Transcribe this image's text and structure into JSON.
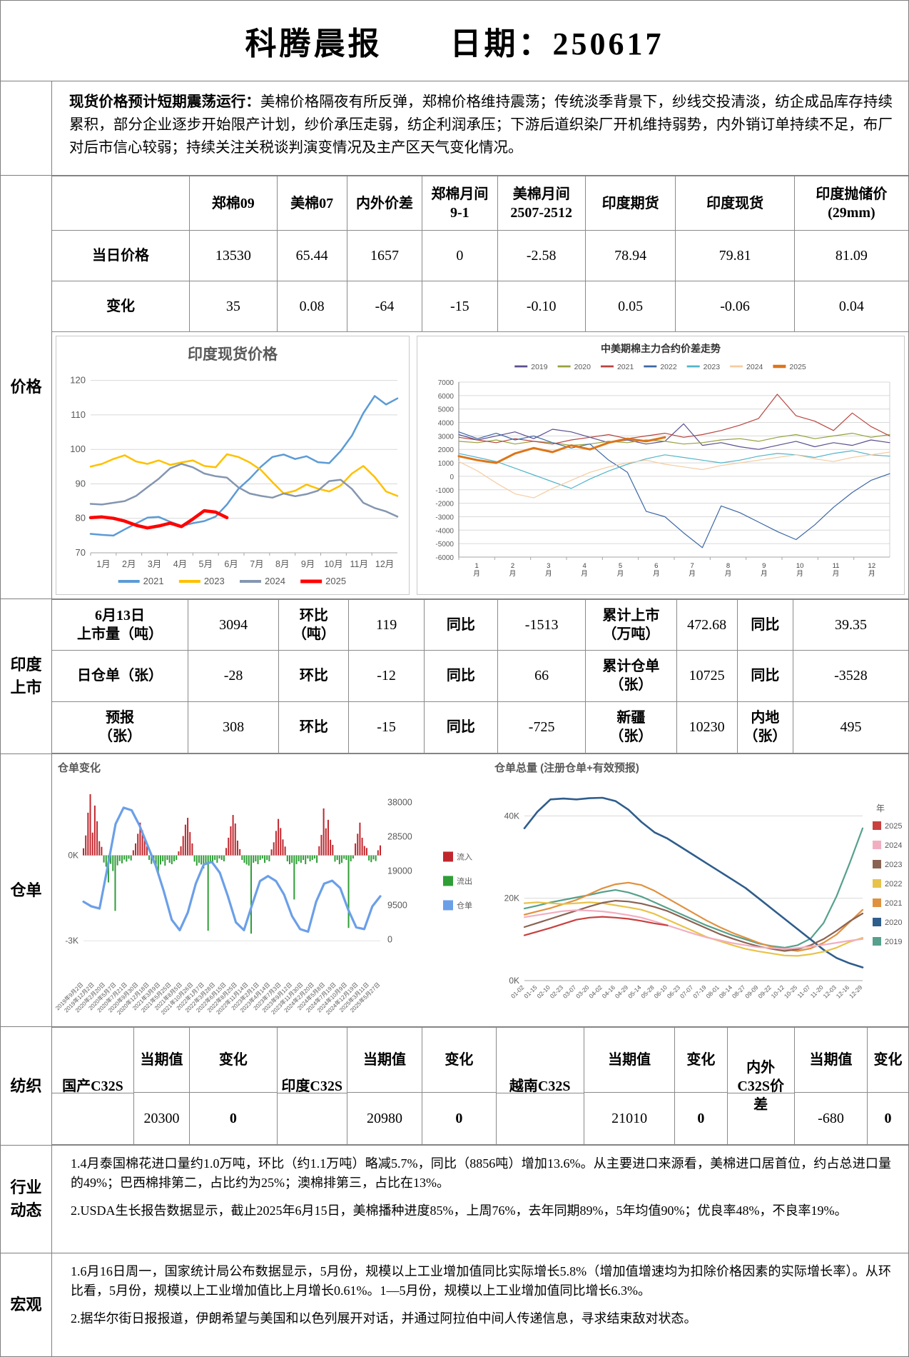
{
  "header": {
    "title": "科腾晨报",
    "date_label": "日期：250617"
  },
  "summary": {
    "lead": "现货价格预计短期震荡运行：",
    "body": "美棉价格隔夜有所反弹，郑棉价格维持震荡；传统淡季背景下，纱线交投清淡，纺企成品库存持续累积，部分企业逐步开始限产计划，纱价承压走弱，纺企利润承压；下游后道织染厂开机维持弱势，内外销订单持续不足，布厂对后市信心较弱；持续关注关税谈判演变情况及主产区天气变化情况。"
  },
  "sections": {
    "price": "价格",
    "india": "印度\n上市",
    "receipts": "仓单",
    "textile": "纺织",
    "industry": "行业\n动态",
    "macro": "宏观"
  },
  "price_table": {
    "headers": [
      "",
      "郑棉09",
      "美棉07",
      "内外价差",
      "郑棉月间\n9-1",
      "美棉月间\n2507-2512",
      "印度期货",
      "印度现货",
      "印度抛储价\n(29mm)"
    ],
    "rows": [
      {
        "label": "当日价格",
        "cells": [
          "13530",
          "65.44",
          "1657",
          "0",
          "-2.58",
          "78.94",
          "79.81",
          "81.09"
        ]
      },
      {
        "label": "变化",
        "cells": [
          "35",
          "0.08",
          "-64",
          "-15",
          "-0.10",
          "0.05",
          "-0.06",
          "0.04"
        ]
      }
    ]
  },
  "india_table": {
    "rows": [
      [
        "6月13日\n上市量（吨）",
        "3094",
        "环比\n（吨）",
        "119",
        "同比",
        "-1513",
        "累计上市\n（万吨）",
        "472.68",
        "同比",
        "39.35"
      ],
      [
        "日仓单（张）",
        "-28",
        "环比",
        "-12",
        "同比",
        "66",
        "累计仓单\n（张）",
        "10725",
        "同比",
        "-3528"
      ],
      [
        "预报\n（张）",
        "308",
        "环比",
        "-15",
        "同比",
        "-725",
        "新疆\n（张）",
        "10230",
        "内地\n（张）",
        "495"
      ]
    ]
  },
  "textile_table": {
    "groups": [
      {
        "name": "国产C32S",
        "current_label": "当期值",
        "current": "20300",
        "change_label": "变化",
        "change": "0"
      },
      {
        "name": "印度C32S",
        "current_label": "当期值",
        "current": "20980",
        "change_label": "变化",
        "change": "0"
      },
      {
        "name": "越南C32S",
        "current_label": "当期值",
        "current": "21010",
        "change_label": "变化",
        "change": "0"
      },
      {
        "name": "内外\nC32S价\n差",
        "current_label": "当期值",
        "current": "-680",
        "change_label": "变化",
        "change": "0"
      }
    ]
  },
  "industry": {
    "items": [
      "1.4月泰国棉花进口量约1.0万吨，环比（约1.1万吨）略减5.7%，同比（8856吨）增加13.6%。从主要进口来源看，美棉进口居首位，约占总进口量的49%；巴西棉排第二，占比约为25%；澳棉排第三，占比在13%。",
      "2.USDA生长报告数据显示，截止2025年6月15日，美棉播种进度85%，上周76%，去年同期89%，5年均值90%；优良率48%，不良率19%。"
    ]
  },
  "macro": {
    "items": [
      "1.6月16日周一，国家统计局公布数据显示，5月份，规模以上工业增加值同比实际增长5.8%（增加值增速均为扣除价格因素的实际增长率）。从环比看，5月份，规模以上工业增加值比上月增长0.61%。1—5月份，规模以上工业增加值同比增长6.3%。",
      "2.据华尔街日报报道，伊朗希望与美国和以色列展开对话，并通过阿拉伯中间人传递信息，寻求结束敌对状态。"
    ]
  },
  "chart_data": [
    {
      "id": "india-spot",
      "type": "line",
      "title": "印度现货价格",
      "ylim": [
        70,
        122
      ],
      "yticks": [
        70,
        80,
        90,
        100,
        110,
        120
      ],
      "x_labels": [
        "1月",
        "2月",
        "3月",
        "4月",
        "5月",
        "6月",
        "7月",
        "8月",
        "9月",
        "10月",
        "11月",
        "12月"
      ],
      "legend_position": "bottom",
      "series": [
        {
          "name": "2021",
          "color": "#5B9BD5",
          "w": 2.5,
          "values": [
            75.5,
            75.2,
            75.0,
            76.8,
            78.5,
            80.2,
            80.4,
            79.0,
            77.8,
            78.6,
            79.2,
            80.5,
            84.0,
            88.5,
            91.5,
            95.0,
            97.8,
            98.5,
            97.2,
            98.0,
            96.3,
            96.0,
            99.5,
            104.0,
            110.5,
            115.5,
            113.0,
            114.8
          ]
        },
        {
          "name": "2023",
          "color": "#FFC000",
          "w": 2.5,
          "values": [
            95.0,
            95.8,
            97.2,
            98.3,
            96.5,
            95.8,
            96.8,
            95.5,
            96.2,
            96.8,
            95.2,
            94.8,
            98.6,
            97.8,
            96.2,
            94.0,
            90.5,
            87.2,
            88.0,
            89.8,
            88.6,
            87.8,
            89.5,
            93.0,
            95.2,
            92.0,
            87.8,
            86.5
          ]
        },
        {
          "name": "2024",
          "color": "#8496B0",
          "w": 2.5,
          "values": [
            84.2,
            84.0,
            84.5,
            85.0,
            86.5,
            89.0,
            91.5,
            94.5,
            95.8,
            94.8,
            93.0,
            92.2,
            91.8,
            89.0,
            87.2,
            86.5,
            86.0,
            87.2,
            86.4,
            87.0,
            88.0,
            90.8,
            91.2,
            88.5,
            84.5,
            83.0,
            82.0,
            80.5
          ]
        },
        {
          "name": "2025",
          "color": "#FF0000",
          "w": 4.5,
          "values": [
            80.2,
            80.4,
            80.0,
            79.2,
            78.0,
            77.2,
            77.8,
            78.6,
            77.6,
            79.8,
            82.2,
            81.8,
            80.2
          ]
        }
      ]
    },
    {
      "id": "cn-us-spread",
      "type": "line",
      "title": "中美期棉主力合约价差走势",
      "ylim": [
        -6000,
        7000
      ],
      "yticks": [
        -6000,
        -5000,
        -4000,
        -3000,
        -2000,
        -1000,
        0,
        1000,
        2000,
        3000,
        4000,
        5000,
        6000,
        7000
      ],
      "x_labels": [
        "1月",
        "2月",
        "3月",
        "4月",
        "5月",
        "6月",
        "7月",
        "8月",
        "9月",
        "10月",
        "11月",
        "12月"
      ],
      "legend_position": "top",
      "series": [
        {
          "name": "2019",
          "color": "#5C4E8E",
          "w": 1.2,
          "values": [
            3100,
            2700,
            3000,
            3300,
            2800,
            3500,
            3300,
            2900,
            2500,
            2700,
            2400,
            2600,
            3900,
            2300,
            2500,
            2200,
            2000,
            2300,
            2600,
            2200,
            2500,
            2300,
            2700,
            2500
          ]
        },
        {
          "name": "2020",
          "color": "#97A13D",
          "w": 1.2,
          "values": [
            2600,
            2500,
            2700,
            2400,
            2600,
            2500,
            2300,
            2400,
            2600,
            2500,
            2700,
            2600,
            2400,
            2500,
            2700,
            2800,
            2600,
            2900,
            3100,
            2800,
            3000,
            3200,
            2900,
            3100
          ]
        },
        {
          "name": "2021",
          "color": "#B8453F",
          "w": 1.2,
          "values": [
            2900,
            2700,
            2500,
            2800,
            2600,
            2400,
            2700,
            2900,
            3100,
            2800,
            3000,
            3200,
            2900,
            3100,
            3400,
            3800,
            4300,
            6100,
            4500,
            4100,
            3400,
            4700,
            3700,
            3000
          ]
        },
        {
          "name": "2022",
          "color": "#3C67A5",
          "w": 1.2,
          "values": [
            3300,
            2800,
            3200,
            2700,
            3000,
            2500,
            2100,
            2400,
            1200,
            300,
            -2600,
            -3000,
            -4200,
            -5300,
            -2200,
            -2700,
            -3400,
            -4100,
            -4700,
            -3600,
            -2300,
            -1200,
            -300,
            200
          ]
        },
        {
          "name": "2023",
          "color": "#51B5C9",
          "w": 1.2,
          "values": [
            1700,
            1400,
            1100,
            600,
            100,
            -400,
            -900,
            -200,
            400,
            900,
            1300,
            1600,
            1400,
            1200,
            1000,
            1200,
            1500,
            1700,
            1600,
            1400,
            1700,
            1900,
            1600,
            1500
          ]
        },
        {
          "name": "2024",
          "color": "#F5CBA0",
          "w": 1.2,
          "values": [
            1100,
            400,
            -500,
            -1300,
            -1600,
            -900,
            -300,
            300,
            700,
            1000,
            1200,
            900,
            700,
            500,
            800,
            1000,
            1200,
            1400,
            1600,
            1300,
            1100,
            1400,
            1600,
            1800
          ]
        },
        {
          "name": "2025",
          "color": "#DD7518",
          "w": 3,
          "values": [
            1500,
            1200,
            1000,
            1700,
            2100,
            1800,
            2300,
            2000,
            2500,
            2800,
            2600,
            2900
          ]
        }
      ]
    },
    {
      "id": "receipt-change",
      "type": "bar-line",
      "title": "仓单变化",
      "left_axis": {
        "lim": [
          -4300,
          2400
        ],
        "ticks": [
          {
            "v": 0,
            "label": "0K"
          },
          {
            "v": -3000,
            "label": "-3K"
          }
        ]
      },
      "right_axis": {
        "lim": [
          0,
          38000
        ],
        "ticks": [
          38000,
          28500,
          19000,
          9500,
          0
        ]
      },
      "legend": [
        {
          "label": "流入",
          "color": "#C0272D"
        },
        {
          "label": "流出",
          "color": "#2E9E35"
        },
        {
          "label": "仓单",
          "color": "#6B9FE8"
        }
      ],
      "x_labels": [
        "2019年9月2日",
        "2019年12月2日",
        "2020年2月20日",
        "2020年5月7日",
        "2020年7月21日",
        "2020年9月30日",
        "2020年12月18日",
        "2021年3月9日",
        "2021年5月25日",
        "2021年8月5日",
        "2021年10月26日",
        "2022年1月7日",
        "2022年3月28日",
        "2022年6月15日",
        "2022年8月25日",
        "2022年11月14日",
        "2023年2月1日",
        "2023年4月14日",
        "2023年7月3日",
        "2023年9月12日",
        "2023年11月30日",
        "2024年2月20日",
        "2024年5月8日",
        "2024年7月19日",
        "2024年10月9日",
        "2024年12月19日",
        "2025年3月11日",
        "2025年5月27日"
      ],
      "bar_values": [
        250,
        700,
        1500,
        2150,
        800,
        1750,
        1200,
        500,
        300,
        -250,
        -400,
        -950,
        -300,
        -550,
        -1950,
        -350,
        -200,
        -280,
        -150,
        -220,
        -120,
        -180,
        180,
        420,
        760,
        1150,
        880,
        560,
        320,
        -160,
        -300,
        -260,
        -420,
        -700,
        -320,
        -210,
        -360,
        -160,
        -260,
        -310,
        -210,
        -160,
        140,
        320,
        680,
        1080,
        1320,
        820,
        420,
        -220,
        -360,
        -260,
        -320,
        -460,
        -260,
        -2650,
        -210,
        -310,
        -160,
        -260,
        -110,
        -160,
        -210,
        260,
        620,
        1020,
        1420,
        1120,
        520,
        220,
        -160,
        -260,
        -320,
        -360,
        -2750,
        -260,
        -210,
        -310,
        -160,
        -110,
        -260,
        -160,
        -210,
        210,
        460,
        860,
        1280,
        960,
        560,
        310,
        -210,
        -310,
        -260,
        -1550,
        -310,
        -210,
        -260,
        -160,
        -310,
        -110,
        -210,
        -160,
        -110,
        -260,
        320,
        720,
        1650,
        950,
        1250,
        550,
        370,
        -220,
        -160,
        -310,
        -260,
        -120,
        -160,
        -2550,
        -210,
        -110,
        420,
        760,
        1150,
        620,
        330,
        260,
        -180,
        -240,
        -140,
        -200,
        180,
        350
      ],
      "line_name": "仓单",
      "line_color": "#6B9FE8",
      "line_values": [
        10500,
        9200,
        8600,
        20000,
        32000,
        36500,
        35800,
        31500,
        26000,
        20500,
        13500,
        5500,
        2600,
        7500,
        15500,
        20800,
        21500,
        18500,
        12000,
        4800,
        2600,
        9500,
        16200,
        17600,
        16200,
        12500,
        6500,
        2900,
        2200,
        10500,
        15500,
        16300,
        14300,
        8300,
        3400,
        2900,
        9200,
        12000
      ]
    },
    {
      "id": "receipt-total",
      "type": "line",
      "title": "仓单总量 (注册仓单+有效预报)",
      "ylim": [
        0,
        47000
      ],
      "yticks": [
        {
          "v": 0,
          "label": "0K"
        },
        {
          "v": 20000,
          "label": "20K"
        },
        {
          "v": 40000,
          "label": "40K"
        }
      ],
      "x_labels": [
        "01-02",
        "01-15",
        "02-10",
        "02-23",
        "03-07",
        "03-20",
        "04-02",
        "04-16",
        "04-29",
        "05-14",
        "05-28",
        "06-10",
        "06-23",
        "07-07",
        "07-19",
        "08-01",
        "08-14",
        "08-27",
        "09-09",
        "09-22",
        "10-12",
        "10-25",
        "11-07",
        "11-20",
        "12-03",
        "12-16",
        "12-29"
      ],
      "legend_title": "年",
      "legend_position": "right",
      "series": [
        {
          "name": "2025",
          "color": "#C9403E",
          "w": 2.2,
          "values": [
            11000,
            11900,
            12800,
            13800,
            14800,
            15300,
            15500,
            15300,
            15000,
            14500,
            13900,
            13400
          ]
        },
        {
          "name": "2024",
          "color": "#F2AEC1",
          "w": 2.2,
          "values": [
            15400,
            15900,
            16400,
            16900,
            17100,
            17000,
            16800,
            16400,
            15900,
            15300,
            14400,
            13400,
            12400,
            11400,
            10500,
            9800,
            9100,
            8600,
            8100,
            7900,
            7700,
            7900,
            8300,
            8700,
            9200,
            9700,
            10100
          ]
        },
        {
          "name": "2023",
          "color": "#8A6352",
          "w": 2.2,
          "values": [
            13000,
            14000,
            15000,
            16000,
            17000,
            18000,
            18900,
            19400,
            19200,
            18700,
            17900,
            16900,
            15500,
            14100,
            12700,
            11300,
            10200,
            9200,
            8300,
            7700,
            7200,
            7600,
            8600,
            10100,
            12100,
            14400,
            16300
          ]
        },
        {
          "name": "2022",
          "color": "#E8C34A",
          "w": 2.2,
          "values": [
            18800,
            19000,
            18800,
            18600,
            18800,
            19000,
            18800,
            18300,
            17800,
            17200,
            16200,
            14800,
            13400,
            12000,
            10600,
            9600,
            8600,
            7700,
            7100,
            6600,
            6100,
            6000,
            6400,
            7000,
            8000,
            9400,
            10400
          ]
        },
        {
          "name": "2021",
          "color": "#E0913F",
          "w": 2.2,
          "values": [
            16000,
            16800,
            17600,
            18600,
            19600,
            21000,
            22400,
            23400,
            23800,
            23200,
            21800,
            20000,
            18200,
            16400,
            14600,
            13000,
            11600,
            10400,
            9200,
            8200,
            7600,
            7200,
            7800,
            9200,
            11200,
            14200,
            17200
          ]
        },
        {
          "name": "2020",
          "color": "#2F5D8C",
          "w": 2.6,
          "values": [
            37000,
            41000,
            44000,
            44200,
            44000,
            44300,
            44400,
            43600,
            41500,
            38500,
            36000,
            34500,
            32500,
            30500,
            28500,
            26500,
            24500,
            22500,
            20000,
            17500,
            15000,
            12500,
            10000,
            7500,
            5500,
            4200,
            3200
          ]
        },
        {
          "name": "2019",
          "color": "#56A08C",
          "w": 2.2,
          "values": [
            17500,
            18200,
            19000,
            19600,
            20200,
            20800,
            21500,
            22000,
            21400,
            20400,
            19000,
            17600,
            16200,
            14800,
            13400,
            12200,
            11000,
            10000,
            9000,
            8400,
            8000,
            8600,
            10200,
            14000,
            20500,
            28500,
            37000
          ]
        }
      ]
    }
  ]
}
